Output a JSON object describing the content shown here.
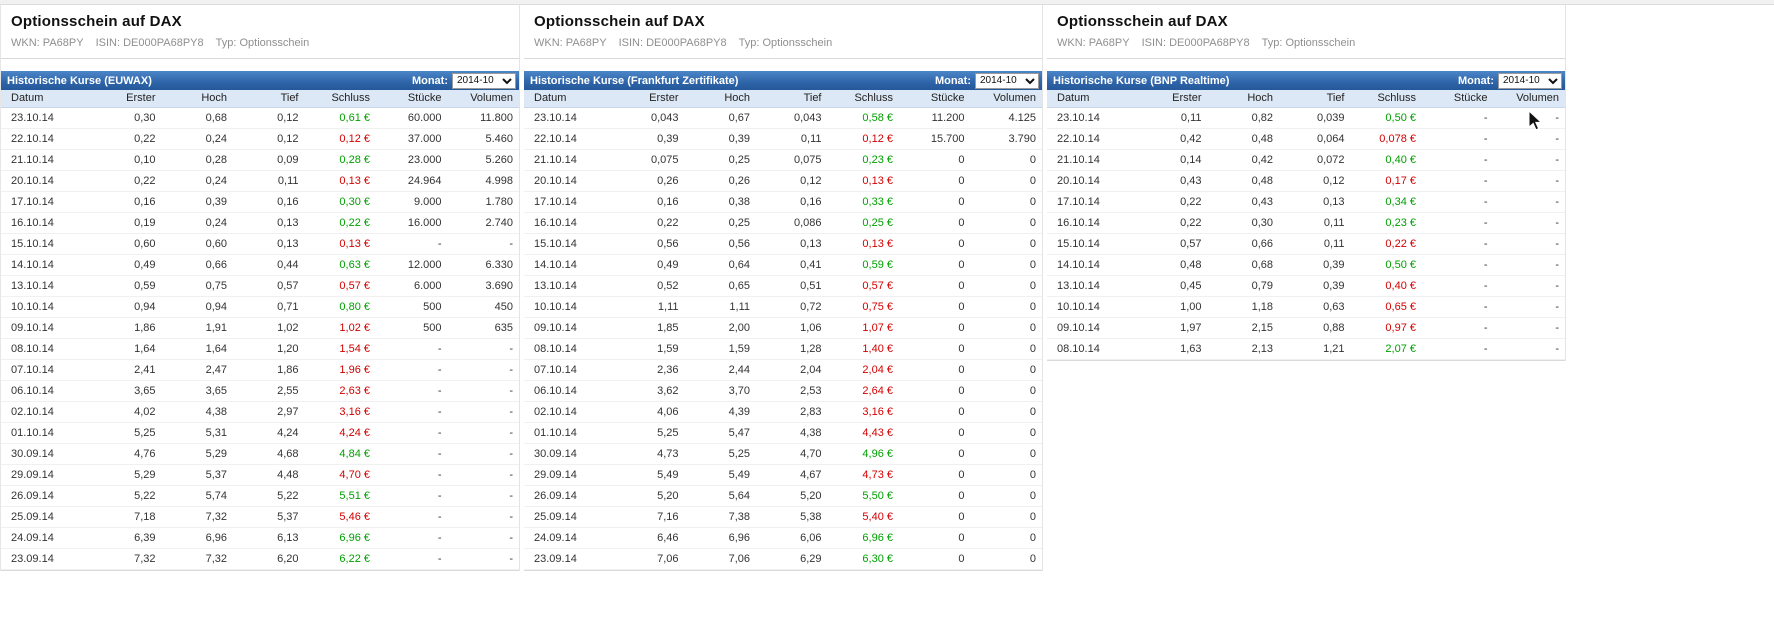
{
  "page": {
    "title": "Optionsschein auf DAX",
    "meta": [
      {
        "label": "WKN:",
        "value": "PA68PY"
      },
      {
        "label": "ISIN:",
        "value": "DE000PA68PY8"
      },
      {
        "label": "Typ:",
        "value": "Optionsschein"
      }
    ],
    "month": {
      "label": "Monat:",
      "value": "2014-10"
    }
  },
  "colors": {
    "header_bar_blue": "#2e64a8",
    "column_header_bg": "#dde8f6",
    "positive": "#00a000",
    "negative": "#d40000"
  },
  "columns": [
    "Datum",
    "Erster",
    "Hoch",
    "Tief",
    "Schluss",
    "Stücke",
    "Volumen"
  ],
  "panels": [
    {
      "table_title": "Historische Kurse (EUWAX)",
      "rows": [
        [
          "23.10.14",
          "0,30",
          "0,68",
          "0,12",
          "0,61 €",
          "60.000",
          "11.800",
          "up"
        ],
        [
          "22.10.14",
          "0,22",
          "0,24",
          "0,12",
          "0,12 €",
          "37.000",
          "5.460",
          "down"
        ],
        [
          "21.10.14",
          "0,10",
          "0,28",
          "0,09",
          "0,28 €",
          "23.000",
          "5.260",
          "up"
        ],
        [
          "20.10.14",
          "0,22",
          "0,24",
          "0,11",
          "0,13 €",
          "24.964",
          "4.998",
          "down"
        ],
        [
          "17.10.14",
          "0,16",
          "0,39",
          "0,16",
          "0,30 €",
          "9.000",
          "1.780",
          "up"
        ],
        [
          "16.10.14",
          "0,19",
          "0,24",
          "0,13",
          "0,22 €",
          "16.000",
          "2.740",
          "up"
        ],
        [
          "15.10.14",
          "0,60",
          "0,60",
          "0,13",
          "0,13 €",
          "-",
          "-",
          "down"
        ],
        [
          "14.10.14",
          "0,49",
          "0,66",
          "0,44",
          "0,63 €",
          "12.000",
          "6.330",
          "up"
        ],
        [
          "13.10.14",
          "0,59",
          "0,75",
          "0,57",
          "0,57 €",
          "6.000",
          "3.690",
          "down"
        ],
        [
          "10.10.14",
          "0,94",
          "0,94",
          "0,71",
          "0,80 €",
          "500",
          "450",
          "up"
        ],
        [
          "09.10.14",
          "1,86",
          "1,91",
          "1,02",
          "1,02 €",
          "500",
          "635",
          "down"
        ],
        [
          "08.10.14",
          "1,64",
          "1,64",
          "1,20",
          "1,54 €",
          "-",
          "-",
          "down"
        ],
        [
          "07.10.14",
          "2,41",
          "2,47",
          "1,86",
          "1,96 €",
          "-",
          "-",
          "down"
        ],
        [
          "06.10.14",
          "3,65",
          "3,65",
          "2,55",
          "2,63 €",
          "-",
          "-",
          "down"
        ],
        [
          "02.10.14",
          "4,02",
          "4,38",
          "2,97",
          "3,16 €",
          "-",
          "-",
          "down"
        ],
        [
          "01.10.14",
          "5,25",
          "5,31",
          "4,24",
          "4,24 €",
          "-",
          "-",
          "down"
        ],
        [
          "30.09.14",
          "4,76",
          "5,29",
          "4,68",
          "4,84 €",
          "-",
          "-",
          "up"
        ],
        [
          "29.09.14",
          "5,29",
          "5,37",
          "4,48",
          "4,70 €",
          "-",
          "-",
          "down"
        ],
        [
          "26.09.14",
          "5,22",
          "5,74",
          "5,22",
          "5,51 €",
          "-",
          "-",
          "up"
        ],
        [
          "25.09.14",
          "7,18",
          "7,32",
          "5,37",
          "5,46 €",
          "-",
          "-",
          "down"
        ],
        [
          "24.09.14",
          "6,39",
          "6,96",
          "6,13",
          "6,96 €",
          "-",
          "-",
          "up"
        ],
        [
          "23.09.14",
          "7,32",
          "7,32",
          "6,20",
          "6,22 €",
          "-",
          "-",
          "up"
        ]
      ]
    },
    {
      "table_title": "Historische Kurse (Frankfurt Zertifikate)",
      "rows": [
        [
          "23.10.14",
          "0,043",
          "0,67",
          "0,043",
          "0,58 €",
          "11.200",
          "4.125",
          "up"
        ],
        [
          "22.10.14",
          "0,39",
          "0,39",
          "0,11",
          "0,12 €",
          "15.700",
          "3.790",
          "down"
        ],
        [
          "21.10.14",
          "0,075",
          "0,25",
          "0,075",
          "0,23 €",
          "0",
          "0",
          "up"
        ],
        [
          "20.10.14",
          "0,26",
          "0,26",
          "0,12",
          "0,13 €",
          "0",
          "0",
          "down"
        ],
        [
          "17.10.14",
          "0,16",
          "0,38",
          "0,16",
          "0,33 €",
          "0",
          "0",
          "up"
        ],
        [
          "16.10.14",
          "0,22",
          "0,25",
          "0,086",
          "0,25 €",
          "0",
          "0",
          "up"
        ],
        [
          "15.10.14",
          "0,56",
          "0,56",
          "0,13",
          "0,13 €",
          "0",
          "0",
          "down"
        ],
        [
          "14.10.14",
          "0,49",
          "0,64",
          "0,41",
          "0,59 €",
          "0",
          "0",
          "up"
        ],
        [
          "13.10.14",
          "0,52",
          "0,65",
          "0,51",
          "0,57 €",
          "0",
          "0",
          "down"
        ],
        [
          "10.10.14",
          "1,11",
          "1,11",
          "0,72",
          "0,75 €",
          "0",
          "0",
          "down"
        ],
        [
          "09.10.14",
          "1,85",
          "2,00",
          "1,06",
          "1,07 €",
          "0",
          "0",
          "down"
        ],
        [
          "08.10.14",
          "1,59",
          "1,59",
          "1,28",
          "1,40 €",
          "0",
          "0",
          "down"
        ],
        [
          "07.10.14",
          "2,36",
          "2,44",
          "2,04",
          "2,04 €",
          "0",
          "0",
          "down"
        ],
        [
          "06.10.14",
          "3,62",
          "3,70",
          "2,53",
          "2,64 €",
          "0",
          "0",
          "down"
        ],
        [
          "02.10.14",
          "4,06",
          "4,39",
          "2,83",
          "3,16 €",
          "0",
          "0",
          "down"
        ],
        [
          "01.10.14",
          "5,25",
          "5,47",
          "4,38",
          "4,43 €",
          "0",
          "0",
          "down"
        ],
        [
          "30.09.14",
          "4,73",
          "5,25",
          "4,70",
          "4,96 €",
          "0",
          "0",
          "up"
        ],
        [
          "29.09.14",
          "5,49",
          "5,49",
          "4,67",
          "4,73 €",
          "0",
          "0",
          "down"
        ],
        [
          "26.09.14",
          "5,20",
          "5,64",
          "5,20",
          "5,50 €",
          "0",
          "0",
          "up"
        ],
        [
          "25.09.14",
          "7,16",
          "7,38",
          "5,38",
          "5,40 €",
          "0",
          "0",
          "down"
        ],
        [
          "24.09.14",
          "6,46",
          "6,96",
          "6,06",
          "6,96 €",
          "0",
          "0",
          "up"
        ],
        [
          "23.09.14",
          "7,06",
          "7,06",
          "6,29",
          "6,30 €",
          "0",
          "0",
          "up"
        ]
      ]
    },
    {
      "table_title": "Historische Kurse (BNP Realtime)",
      "rows": [
        [
          "23.10.14",
          "0,11",
          "0,82",
          "0,039",
          "0,50 €",
          "-",
          "-",
          "up"
        ],
        [
          "22.10.14",
          "0,42",
          "0,48",
          "0,064",
          "0,078 €",
          "-",
          "-",
          "down"
        ],
        [
          "21.10.14",
          "0,14",
          "0,42",
          "0,072",
          "0,40 €",
          "-",
          "-",
          "up"
        ],
        [
          "20.10.14",
          "0,43",
          "0,48",
          "0,12",
          "0,17 €",
          "-",
          "-",
          "down"
        ],
        [
          "17.10.14",
          "0,22",
          "0,43",
          "0,13",
          "0,34 €",
          "-",
          "-",
          "up"
        ],
        [
          "16.10.14",
          "0,22",
          "0,30",
          "0,11",
          "0,23 €",
          "-",
          "-",
          "up"
        ],
        [
          "15.10.14",
          "0,57",
          "0,66",
          "0,11",
          "0,22 €",
          "-",
          "-",
          "down"
        ],
        [
          "14.10.14",
          "0,48",
          "0,68",
          "0,39",
          "0,50 €",
          "-",
          "-",
          "up"
        ],
        [
          "13.10.14",
          "0,45",
          "0,79",
          "0,39",
          "0,40 €",
          "-",
          "-",
          "down"
        ],
        [
          "10.10.14",
          "1,00",
          "1,18",
          "0,63",
          "0,65 €",
          "-",
          "-",
          "down"
        ],
        [
          "09.10.14",
          "1,97",
          "2,15",
          "0,88",
          "0,97 €",
          "-",
          "-",
          "down"
        ],
        [
          "08.10.14",
          "1,63",
          "2,13",
          "1,21",
          "2,07 €",
          "-",
          "-",
          "up"
        ]
      ]
    }
  ]
}
